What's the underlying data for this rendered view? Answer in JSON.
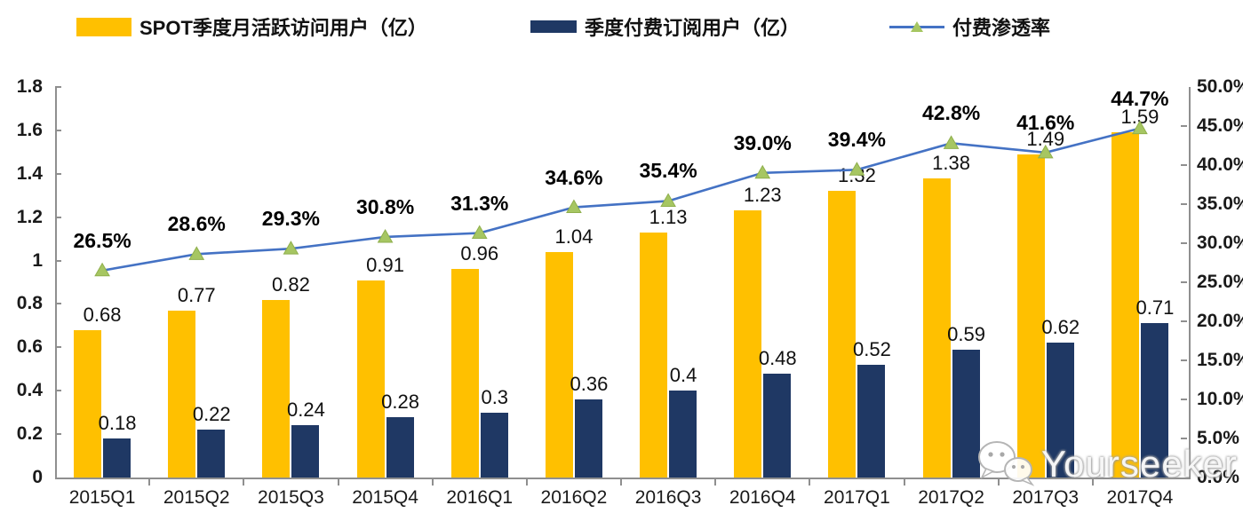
{
  "legend": [
    {
      "label": "SPOT季度月活跃访问用户（亿）",
      "color": "#FFC000",
      "type": "bar"
    },
    {
      "label": "季度付费订阅用户（亿）",
      "color": "#1F3864",
      "type": "bar"
    },
    {
      "label": "付费渗透率",
      "color": "#4472C4",
      "marker_color": "#A6C662",
      "type": "line"
    }
  ],
  "watermark": {
    "icon": "wechat-icon",
    "text": "Yourseeker"
  },
  "chart_data": {
    "type": "bar+line combo",
    "categories": [
      "2015Q1",
      "2015Q2",
      "2015Q3",
      "2015Q4",
      "2016Q1",
      "2016Q2",
      "2016Q3",
      "2016Q4",
      "2017Q1",
      "2017Q2",
      "2017Q3",
      "2017Q4"
    ],
    "series": [
      {
        "name": "SPOT季度月活跃访问用户（亿）",
        "type": "bar",
        "axis": "left",
        "color": "#FFC000",
        "values": [
          0.68,
          0.77,
          0.82,
          0.91,
          0.96,
          1.04,
          1.13,
          1.23,
          1.32,
          1.38,
          1.49,
          1.59
        ],
        "labels": [
          "0.68",
          "0.77",
          "0.82",
          "0.91",
          "0.96",
          "1.04",
          "1.13",
          "1.23",
          "1.32",
          "1.38",
          "1.49",
          "1.59"
        ]
      },
      {
        "name": "季度付费订阅用户（亿）",
        "type": "bar",
        "axis": "left",
        "color": "#1F3864",
        "values": [
          0.18,
          0.22,
          0.24,
          0.28,
          0.3,
          0.36,
          0.4,
          0.48,
          0.52,
          0.59,
          0.62,
          0.71
        ],
        "labels": [
          "0.18",
          "0.22",
          "0.24",
          "0.28",
          "0.3",
          "0.36",
          "0.4",
          "0.48",
          "0.52",
          "0.59",
          "0.62",
          "0.71"
        ]
      },
      {
        "name": "付费渗透率",
        "type": "line",
        "axis": "right",
        "line_color": "#4472C4",
        "marker": "triangle",
        "marker_color": "#A6C662",
        "values": [
          26.5,
          28.6,
          29.3,
          30.8,
          31.3,
          34.6,
          35.4,
          39.0,
          39.4,
          42.8,
          41.6,
          44.7
        ],
        "labels": [
          "26.5%",
          "28.6%",
          "29.3%",
          "30.8%",
          "31.3%",
          "34.6%",
          "35.4%",
          "39.0%",
          "39.4%",
          "42.8%",
          "41.6%",
          "44.7%"
        ]
      }
    ],
    "left_axis": {
      "min": 0,
      "max": 1.8,
      "tick_step": 0.2,
      "ticks": [
        "0",
        "0.2",
        "0.4",
        "0.6",
        "0.8",
        "1",
        "1.2",
        "1.4",
        "1.6",
        "1.8"
      ],
      "tick_values": [
        0,
        0.2,
        0.4,
        0.6,
        0.8,
        1,
        1.2,
        1.4,
        1.6,
        1.8
      ]
    },
    "right_axis": {
      "min": 0,
      "max": 50,
      "tick_step": 5,
      "ticks": [
        "0.0%",
        "5.0%",
        "10.0%",
        "15.0%",
        "20.0%",
        "25.0%",
        "30.0%",
        "35.0%",
        "40.0%",
        "45.0%",
        "50.0%"
      ],
      "tick_values": [
        0,
        5,
        10,
        15,
        20,
        25,
        30,
        35,
        40,
        45,
        50
      ]
    },
    "grid": false,
    "legend_position": "top"
  }
}
